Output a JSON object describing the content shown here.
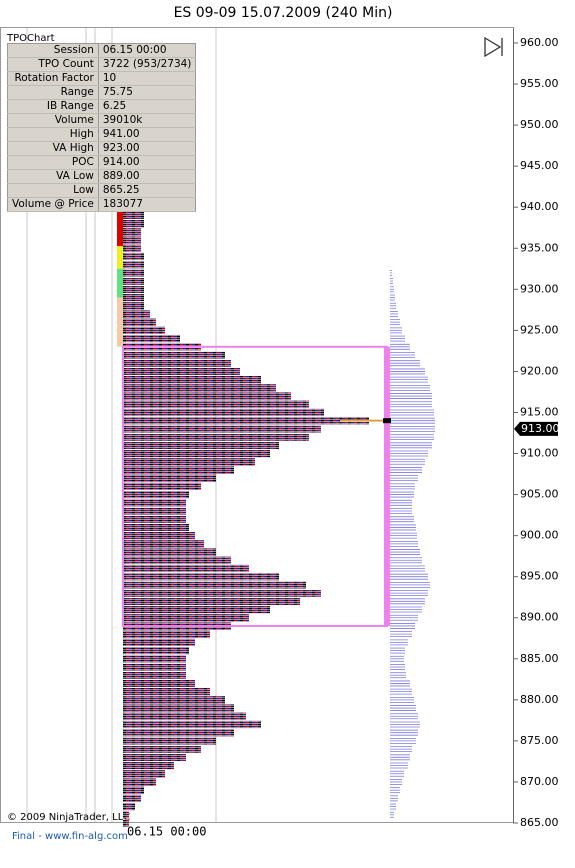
{
  "title": "ES 09-09  15.07.2009 (240 Min)",
  "panel_label": "TPOChart",
  "info": [
    [
      "Session",
      "06.15 00:00"
    ],
    [
      "TPO Count",
      "3722 (953/2734)"
    ],
    [
      "Rotation Factor",
      "10"
    ],
    [
      "Range",
      "75.75"
    ],
    [
      "IB Range",
      "6.25"
    ],
    [
      "Volume",
      "39010k"
    ],
    [
      "High",
      "941.00"
    ],
    [
      "VA High",
      "923.00"
    ],
    [
      "POC",
      "914.00"
    ],
    [
      "VA Low",
      "889.00"
    ],
    [
      "Low",
      "865.25"
    ],
    [
      "Volume @ Price",
      "183077"
    ]
  ],
  "copyright": "© 2009 NinjaTrader, LLC",
  "footer": "Final - www.fin-alg.com",
  "chart_data": {
    "type": "tpo",
    "x_label": "06.15  00:00",
    "levels": [
      941,
      940,
      939,
      938,
      937,
      936,
      935,
      934,
      933,
      932,
      931,
      930,
      929,
      928,
      927,
      926,
      925,
      924,
      923,
      922,
      921,
      920,
      919,
      918,
      917,
      916,
      915,
      914,
      913,
      912,
      911,
      910,
      909,
      908,
      907,
      906,
      905,
      904,
      903,
      902,
      901,
      900,
      899,
      898,
      897,
      896,
      895,
      894,
      893,
      892,
      891,
      890,
      889,
      888,
      887,
      886,
      885,
      884,
      883,
      882,
      881,
      880,
      879,
      878,
      877,
      876,
      875,
      874,
      873,
      872,
      871,
      870,
      869,
      868,
      867,
      866,
      865
    ],
    "series": [
      {
        "name": "TPO",
        "color": "#8b1a4a",
        "values": [
          4,
          7,
          7,
          7,
          6,
          6,
          6,
          7,
          7,
          7,
          7,
          7,
          7,
          7,
          9,
          11,
          14,
          19,
          26,
          34,
          36,
          39,
          46,
          51,
          56,
          62,
          67,
          82,
          66,
          62,
          52,
          49,
          44,
          37,
          31,
          26,
          22,
          21,
          21,
          21,
          22,
          24,
          27,
          31,
          36,
          42,
          52,
          61,
          66,
          59,
          49,
          42,
          36,
          29,
          24,
          22,
          21,
          21,
          21,
          24,
          29,
          34,
          37,
          41,
          46,
          37,
          31,
          26,
          21,
          17,
          14,
          11,
          7,
          6,
          4,
          2,
          2
        ]
      },
      {
        "name": "Volume",
        "color": "#7a7ae0",
        "values": [
          null,
          null,
          null,
          null,
          null,
          null,
          null,
          null,
          null,
          2,
          3,
          4,
          5,
          6,
          8,
          10,
          12,
          15,
          20,
          25,
          30,
          35,
          38,
          40,
          42,
          42,
          44,
          45,
          45,
          44,
          42,
          38,
          35,
          32,
          28,
          25,
          24,
          22,
          22,
          24,
          26,
          27,
          28,
          30,
          32,
          35,
          38,
          40,
          38,
          35,
          32,
          28,
          25,
          22,
          18,
          15,
          14,
          15,
          16,
          20,
          22,
          24,
          26,
          28,
          30,
          28,
          26,
          22,
          20,
          18,
          14,
          12,
          10,
          8,
          6,
          4,
          null
        ]
      }
    ],
    "ib_bands": [
      {
        "from": 941,
        "to": 935.25,
        "color": "#e00000"
      },
      {
        "from": 935.25,
        "to": 932.5,
        "color": "#f0f020"
      },
      {
        "from": 932.5,
        "to": 929,
        "color": "#60e080"
      },
      {
        "from": 929,
        "to": 923,
        "color": "#f8c8a8"
      }
    ],
    "value_area": {
      "high": 923,
      "low": 889,
      "poc": 914,
      "color": "#f080f0"
    },
    "last_price": {
      "value": 913,
      "label": "913.00"
    },
    "ylim": [
      865,
      960
    ],
    "yticks": [
      {
        "value": 865,
        "label": "865.00"
      },
      {
        "value": 870,
        "label": "870.00"
      },
      {
        "value": 875,
        "label": "875.00"
      },
      {
        "value": 880,
        "label": "880.00"
      },
      {
        "value": 885,
        "label": "885.00"
      },
      {
        "value": 890,
        "label": "890.00"
      },
      {
        "value": 895,
        "label": "895.00"
      },
      {
        "value": 900,
        "label": "900.00"
      },
      {
        "value": 905,
        "label": "905.00"
      },
      {
        "value": 910,
        "label": "910.00"
      },
      {
        "value": 915,
        "label": "915.00"
      },
      {
        "value": 920,
        "label": "920.00"
      },
      {
        "value": 925,
        "label": "925.00"
      },
      {
        "value": 930,
        "label": "930.00"
      },
      {
        "value": 935,
        "label": "935.00"
      },
      {
        "value": 940,
        "label": "940.00"
      },
      {
        "value": 945,
        "label": "945.00"
      },
      {
        "value": 950,
        "label": "950.00"
      },
      {
        "value": 955,
        "label": "955.00"
      },
      {
        "value": 960,
        "label": "960.00"
      }
    ]
  }
}
